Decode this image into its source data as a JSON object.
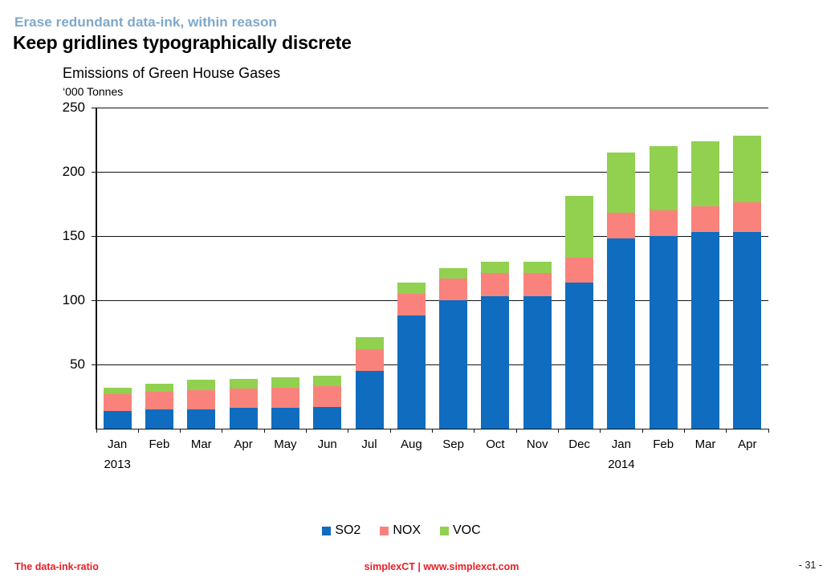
{
  "header": {
    "kicker": "Erase redundant data-ink, within reason",
    "title": "Keep gridlines typographically discrete",
    "kicker_color": "#7FA8C8"
  },
  "chart_data": {
    "type": "bar",
    "stacked": true,
    "title": "Emissions of Green House Gases",
    "subtitle": "‘000 Tonnes",
    "categories": [
      "Jan",
      "Feb",
      "Mar",
      "Apr",
      "May",
      "Jun",
      "Jul",
      "Aug",
      "Sep",
      "Oct",
      "Nov",
      "Dec",
      "Jan",
      "Feb",
      "Mar",
      "Apr"
    ],
    "year_groups": [
      {
        "label": "2013",
        "start_index": 0
      },
      {
        "label": "2014",
        "start_index": 12
      }
    ],
    "series": [
      {
        "name": "SO2",
        "color": "#0F6CBF",
        "values": [
          14,
          15,
          15,
          16,
          16,
          17,
          45,
          88,
          100,
          103,
          103,
          114,
          148,
          150,
          153,
          153
        ]
      },
      {
        "name": "NOX",
        "color": "#F9837C",
        "values": [
          13,
          14,
          15,
          15,
          16,
          16,
          17,
          17,
          17,
          18,
          18,
          19,
          20,
          20,
          20,
          23
        ]
      },
      {
        "name": "VOC",
        "color": "#92D050",
        "values": [
          5,
          6,
          8,
          8,
          8,
          8,
          9,
          9,
          8,
          9,
          9,
          48,
          47,
          50,
          51,
          52
        ]
      }
    ],
    "ylim": [
      0,
      250
    ],
    "yticks": [
      50,
      100,
      150,
      200,
      250
    ],
    "grid": true,
    "gridline_color": "#141414",
    "legend_position": "bottom"
  },
  "footer": {
    "left": "The data-ink-ratio",
    "center": "simplexCT  |  www.simplexct.com",
    "right": "- 31 -",
    "accent_color": "#ED1C24"
  }
}
